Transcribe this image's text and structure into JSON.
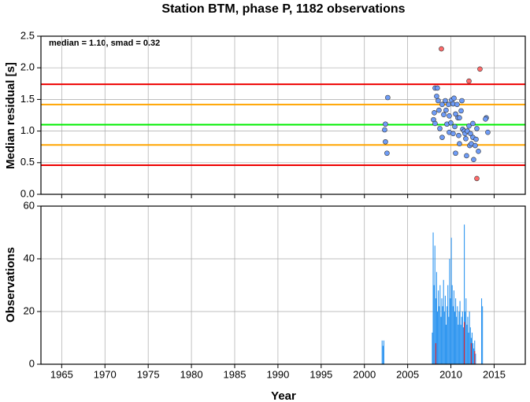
{
  "chart_data": [
    {
      "type": "scatter",
      "title": "Station BTM, phase P, 1182 observations",
      "ylabel": "Median residual [s]",
      "annotation": "median = 1.10, smad = 0.32",
      "ylim": [
        0,
        2.5
      ],
      "yticks": [
        {
          "value": 0,
          "label": "0.0"
        },
        0.5,
        {
          "value": 1,
          "label": "1.0"
        },
        1.5,
        {
          "value": 2,
          "label": "2.0"
        },
        2.5
      ],
      "grid": true,
      "hlines": [
        {
          "value": 1.74,
          "color": "#ee0000"
        },
        {
          "value": 1.42,
          "color": "#ffa500"
        },
        {
          "value": 1.1,
          "color": "#00ee00"
        },
        {
          "value": 0.78,
          "color": "#ffa500"
        },
        {
          "value": 0.46,
          "color": "#ee0000"
        }
      ],
      "series": [
        {
          "color": "#6e9cf7",
          "x": [
            2002.43,
            2002.34,
            2002.43,
            2002.61,
            2002.7,
            2008.17,
            2008.44,
            2008.35,
            2008.53,
            2008.08,
            2007.99,
            2008.17,
            2008.62,
            2008.72,
            2008.99,
            2009.17,
            2008.99,
            2009.35,
            2009.44,
            2009.54,
            2009.72,
            2009.81,
            2009.81,
            2009.99,
            2010.08,
            2010.26,
            2010.26,
            2010.36,
            2010.45,
            2010.54,
            2010.54,
            2010.72,
            2010.81,
            2010.9,
            2010.99,
            2010.99,
            2011.18,
            2011.27,
            2011.36,
            2011.54,
            2011.63,
            2011.72,
            2011.81,
            2011.9,
            2012.09,
            2012.18,
            2012.27,
            2012.36,
            2012.54,
            2012.54,
            2012.63,
            2012.81,
            2012.91,
            2013.0,
            2013.18,
            2014.09,
            2014.27,
            2014.0
          ],
          "values": [
            1.11,
            1.02,
            0.83,
            0.65,
            1.53,
            1.68,
            1.68,
            1.55,
            1.48,
            1.29,
            1.18,
            1.12,
            1.33,
            1.04,
            1.42,
            1.26,
            0.9,
            1.48,
            1.33,
            1.11,
            1.42,
            1.24,
            0.98,
            1.13,
            1.49,
            1.43,
            0.96,
            1.52,
            1.07,
            1.27,
            0.65,
            1.42,
            1.21,
            0.93,
            1.21,
            0.8,
            1.32,
            1.48,
            1.03,
            1.0,
            0.96,
            0.88,
            0.61,
            1.0,
            1.08,
            0.77,
            0.96,
            0.8,
            1.12,
            0.9,
            0.55,
            0.77,
            0.87,
            1.04,
            0.68,
            1.21,
            0.98,
            1.19
          ]
        },
        {
          "color": "#ff6b6b",
          "x": [
            2008.9,
            2013.36,
            2012.09,
            2013.0
          ],
          "values": [
            2.3,
            1.98,
            1.79,
            0.25
          ]
        }
      ]
    },
    {
      "type": "histogram",
      "xlabel": "Year",
      "ylabel": "Observations",
      "xlim": [
        1962.6,
        2018.6
      ],
      "xticks": [
        1965,
        1970,
        1975,
        1980,
        1985,
        1990,
        1995,
        2000,
        2005,
        2010,
        2015
      ],
      "ylim": [
        0,
        60
      ],
      "yticks": [
        0,
        20,
        40,
        60
      ],
      "grid": true,
      "bins": [
        2001.9,
        2002.0,
        2002.1,
        2002.2,
        2002.3,
        2002.4,
        2002.5,
        2002.6,
        2002.7,
        2002.8,
        2002.9,
        2003.0,
        2003.1,
        2003.2,
        2003.3,
        2003.4,
        2003.5,
        2003.6,
        2003.7,
        2003.8,
        2003.9,
        2004.0,
        2004.1,
        2004.2,
        2004.3,
        2004.4,
        2004.5,
        2004.6,
        2004.7,
        2004.8,
        2004.9,
        2005.0,
        2005.1,
        2005.2,
        2005.3,
        2005.4,
        2005.5,
        2005.6,
        2005.7,
        2005.8,
        2005.9,
        2006.0,
        2006.1,
        2006.2,
        2006.3,
        2006.4,
        2006.5,
        2006.6,
        2006.7,
        2006.8,
        2006.9,
        2007.0,
        2007.1,
        2007.2,
        2007.3,
        2007.4,
        2007.5,
        2007.6,
        2007.7,
        2007.8,
        2007.9,
        2008.0,
        2008.1,
        2008.2,
        2008.3,
        2008.4,
        2008.5,
        2008.6,
        2008.7,
        2008.8,
        2008.9,
        2009.0,
        2009.1,
        2009.2,
        2009.3,
        2009.4,
        2009.5,
        2009.6,
        2009.7,
        2009.8,
        2009.9,
        2010.0,
        2010.1,
        2010.2,
        2010.3,
        2010.4,
        2010.5,
        2010.6,
        2010.7,
        2010.8,
        2010.9,
        2011.0,
        2011.1,
        2011.2,
        2011.3,
        2011.4,
        2011.5,
        2011.6,
        2011.7,
        2011.8,
        2011.9,
        2012.0,
        2012.1,
        2012.2,
        2012.3,
        2012.4,
        2012.5,
        2012.6,
        2012.7,
        2012.8,
        2012.9,
        2013.0,
        2013.1,
        2013.2,
        2013.3,
        2013.4,
        2013.5,
        2013.6,
        2013.7,
        2013.8,
        2013.9
      ],
      "series": [
        {
          "color": "#2f96f0",
          "values": [
            0,
            9,
            7,
            9,
            0,
            0,
            0,
            0,
            0,
            0,
            0,
            0,
            0,
            0,
            0,
            0,
            0,
            0,
            0,
            0,
            0,
            0,
            0,
            0,
            0,
            0,
            0,
            0,
            0,
            0,
            0,
            0,
            0,
            0,
            0,
            0,
            0,
            0,
            0,
            0,
            0,
            0,
            0,
            0,
            0,
            0,
            0,
            0,
            0,
            0,
            0,
            0,
            0,
            0,
            0,
            0,
            0,
            0,
            0,
            12,
            50,
            30,
            45,
            25,
            35,
            20,
            28,
            22,
            30,
            18,
            25,
            22,
            32,
            20,
            26,
            15,
            22,
            30,
            18,
            40,
            25,
            48,
            30,
            22,
            28,
            20,
            25,
            18,
            22,
            15,
            20,
            24,
            15,
            18,
            20,
            14,
            53,
            20,
            25,
            15,
            18,
            12,
            20,
            14,
            10,
            12,
            8,
            6,
            9,
            4,
            0,
            0,
            0,
            0,
            0,
            0,
            25,
            22,
            0,
            0
          ]
        },
        {
          "color": "#e0202a",
          "values": [
            0,
            0,
            0,
            0,
            0,
            0,
            0,
            0,
            0,
            0,
            0,
            0,
            0,
            0,
            0,
            0,
            0,
            0,
            0,
            0,
            0,
            0,
            0,
            0,
            0,
            0,
            0,
            0,
            0,
            0,
            0,
            0,
            0,
            0,
            0,
            0,
            0,
            0,
            0,
            0,
            0,
            0,
            0,
            0,
            0,
            0,
            0,
            0,
            0,
            0,
            0,
            0,
            0,
            0,
            0,
            0,
            0,
            0,
            0,
            0,
            0,
            0,
            0,
            8,
            0,
            0,
            0,
            0,
            0,
            0,
            0,
            0,
            0,
            0,
            0,
            0,
            0,
            0,
            0,
            0,
            0,
            0,
            0,
            0,
            0,
            0,
            0,
            0,
            0,
            0,
            0,
            0,
            0,
            0,
            0,
            0,
            16,
            0,
            0,
            0,
            0,
            0,
            0,
            0,
            8,
            0,
            0,
            0,
            5,
            0,
            0,
            0,
            0,
            0,
            0,
            0,
            0,
            0,
            0,
            0
          ]
        }
      ]
    }
  ]
}
